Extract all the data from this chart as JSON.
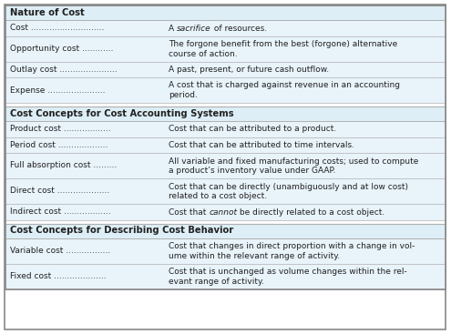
{
  "bg_light": "#ddeef6",
  "bg_row": "#e8f3fa",
  "border_color": "#b0b0b0",
  "text_color": "#222222",
  "sections": [
    {
      "header": "Nature of Cost",
      "rows": [
        {
          "term": "Cost",
          "dots": 28,
          "definition": [
            "A ",
            "sacrifice",
            " of resources."
          ],
          "italic": [
            false,
            true,
            false
          ],
          "lines": 1
        },
        {
          "term": "Opportunity cost",
          "dots": 12,
          "definition": [
            "The forgone benefit from the best (forgone) alternative",
            "course of action."
          ],
          "italic": [
            false,
            false
          ],
          "lines": 2
        },
        {
          "term": "Outlay cost",
          "dots": 22,
          "definition": [
            "A past, present, or future cash outflow."
          ],
          "italic": [
            false
          ],
          "lines": 1
        },
        {
          "term": "Expense",
          "dots": 22,
          "definition": [
            "A cost that is charged against revenue in an accounting",
            "period."
          ],
          "italic": [
            false,
            false
          ],
          "lines": 2
        }
      ]
    },
    {
      "header": "Cost Concepts for Cost Accounting Systems",
      "rows": [
        {
          "term": "Product cost",
          "dots": 18,
          "definition": [
            "Cost that can be attributed to a product."
          ],
          "italic": [
            false
          ],
          "lines": 1
        },
        {
          "term": "Period cost",
          "dots": 19,
          "definition": [
            "Cost that can be attributed to time intervals."
          ],
          "italic": [
            false
          ],
          "lines": 1
        },
        {
          "term": "Full absorption cost",
          "dots": 9,
          "definition": [
            "All variable and fixed manufacturing costs; used to compute",
            "a product’s inventory value under GAAP."
          ],
          "italic": [
            false,
            false
          ],
          "lines": 2
        },
        {
          "term": "Direct cost",
          "dots": 20,
          "definition": [
            "Cost that can be directly (unambiguously and at low cost)",
            "related to a cost object."
          ],
          "italic": [
            false,
            false
          ],
          "lines": 2
        },
        {
          "term": "Indirect cost",
          "dots": 18,
          "definition": [
            "Cost that ",
            "cannot",
            " be directly related to a cost object."
          ],
          "italic": [
            false,
            true,
            false
          ],
          "lines": 1
        }
      ]
    },
    {
      "header": "Cost Concepts for Describing Cost Behavior",
      "rows": [
        {
          "term": "Variable cost",
          "dots": 17,
          "definition": [
            "Cost that changes in direct proportion with a change in vol-",
            "ume within the relevant range of activity."
          ],
          "italic": [
            false,
            false
          ],
          "lines": 2
        },
        {
          "term": "Fixed cost",
          "dots": 20,
          "definition": [
            "Cost that is unchanged as volume changes within the rel-",
            "evant range of activity."
          ],
          "italic": [
            false,
            false
          ],
          "lines": 2
        }
      ]
    }
  ]
}
